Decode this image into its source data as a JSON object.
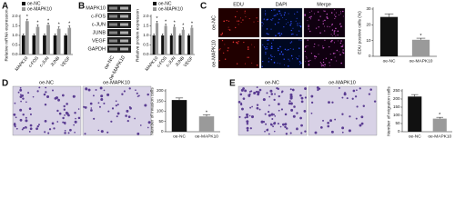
{
  "panels": [
    {
      "label": "A"
    },
    {
      "label": "B",
      "blot_rows": [
        "MAPK10",
        "c-FOS",
        "c-JUN",
        "JUNB",
        "VEGF",
        "GAPDH"
      ],
      "blot_columns": [
        "oe-NC",
        "oe-MAPK10"
      ]
    },
    {
      "label": "C",
      "image_columns": [
        "EDU",
        "DAPI",
        "Merge"
      ],
      "image_rows": [
        "oe-NC",
        "oe-MAPK10"
      ]
    },
    {
      "label": "D",
      "image_columns": [
        "oe-NC",
        "oe-MAPK10"
      ]
    },
    {
      "label": "E",
      "image_columns": [
        "oe-NC",
        "oe-MAPK10"
      ]
    }
  ],
  "chart_data": [
    {
      "type": "bar",
      "y_label": "Relative mRNA expression",
      "categories": [
        "MAPK10",
        "c-FOS",
        "c-JUN",
        "JUNB",
        "VEGF"
      ],
      "series": [
        {
          "name": "oe-NC",
          "color": "#111111",
          "values": [
            1,
            1,
            1,
            1,
            1
          ],
          "errors": [
            0.08,
            0.08,
            0.08,
            0.08,
            0.08
          ]
        },
        {
          "name": "oe-MAPK10",
          "color": "#9a9a9a",
          "values": [
            1.75,
            1.45,
            1.55,
            1.35,
            1.4
          ],
          "errors": [
            0.1,
            0.1,
            0.1,
            0.1,
            0.1
          ]
        }
      ],
      "annotation": "*",
      "ylim": [
        0,
        2
      ],
      "yticks": [
        {
          "value": 0,
          "label": "0.0"
        },
        {
          "value": 0.5,
          "label": "0.5"
        },
        {
          "value": 1,
          "label": "1.0"
        },
        {
          "value": 1.5,
          "label": "1.5"
        },
        {
          "value": 2,
          "label": "2.0"
        }
      ]
    },
    {
      "type": "bar",
      "y_label": "Relative protein expression",
      "categories": [
        "MAPK10",
        "c-FOS",
        "c-JUN",
        "JUNB",
        "VEGF"
      ],
      "series": [
        {
          "name": "oe-NC",
          "color": "#111111",
          "values": [
            1,
            1,
            1,
            1,
            1
          ],
          "errors": [
            0.08,
            0.08,
            0.08,
            0.08,
            0.08
          ]
        },
        {
          "name": "oe-MAPK10",
          "color": "#9a9a9a",
          "values": [
            1.65,
            1.5,
            1.45,
            1.3,
            1.4
          ],
          "errors": [
            0.1,
            0.1,
            0.1,
            0.1,
            0.1
          ]
        }
      ],
      "annotation": "*",
      "ylim": [
        0,
        2
      ],
      "yticks": [
        {
          "value": 0,
          "label": "0.0"
        },
        {
          "value": 0.5,
          "label": "0.5"
        },
        {
          "value": 1,
          "label": "1.0"
        },
        {
          "value": 1.5,
          "label": "1.5"
        },
        {
          "value": 2,
          "label": "2.0"
        }
      ]
    },
    {
      "type": "bar",
      "y_label": "EDU positive cells (%)",
      "categories": [
        "oe-NC",
        "oe-MAPK10"
      ],
      "values": [
        25,
        10.5
      ],
      "errors": [
        2,
        1
      ],
      "colors": [
        "#111111",
        "#9a9a9a"
      ],
      "annotation": "*",
      "ylim": [
        0,
        30
      ],
      "yticks": [
        0,
        10,
        20,
        30
      ]
    },
    {
      "type": "bar",
      "y_label": "Number of invasion cells",
      "categories": [
        "oe-NC",
        "oe-MAPK10"
      ],
      "values": [
        155,
        75
      ],
      "errors": [
        10,
        8
      ],
      "colors": [
        "#111111",
        "#9a9a9a"
      ],
      "annotation": "*",
      "ylim": [
        0,
        200
      ],
      "yticks": [
        0,
        50,
        100,
        150,
        200
      ]
    },
    {
      "type": "bar",
      "y_label": "Number of migration cells",
      "categories": [
        "oe-NC",
        "oe-MAPK10"
      ],
      "values": [
        215,
        80
      ],
      "errors": [
        12,
        8
      ],
      "colors": [
        "#111111",
        "#9a9a9a"
      ],
      "annotation": "*",
      "ylim": [
        0,
        250
      ],
      "yticks": [
        0,
        50,
        100,
        150,
        200,
        250
      ]
    }
  ]
}
